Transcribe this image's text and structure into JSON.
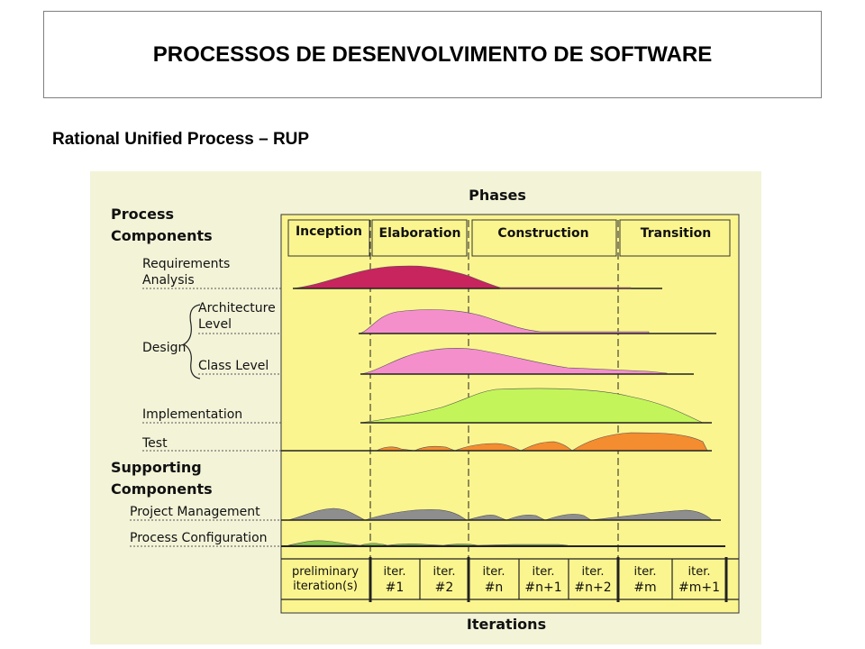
{
  "header": {
    "title": "PROCESSOS DE DESENVOLVIMENTO DE SOFTWARE"
  },
  "subtitle": "Rational Unified Process – RUP",
  "diagram": {
    "top_label": "Phases",
    "bottom_label": "Iterations",
    "process_components_label": [
      "Process",
      "Components"
    ],
    "supporting_components_label": [
      "Supporting",
      "Components"
    ],
    "phases": [
      "Inception",
      "Elaboration",
      "Construction",
      "Transition"
    ],
    "disciplines": {
      "requirements": [
        "Requirements",
        "Analysis"
      ],
      "design": "Design",
      "architecture": [
        "Architecture",
        "Level"
      ],
      "class_level": "Class Level",
      "implementation": "Implementation",
      "test": "Test",
      "project_management": "Project Management",
      "process_configuration": "Process Configuration"
    },
    "iterations": [
      [
        "preliminary",
        "iteration(s)"
      ],
      [
        "iter.",
        "#1"
      ],
      [
        "iter.",
        "#2"
      ],
      [
        "iter.",
        "#n"
      ],
      [
        "iter.",
        "#n+1"
      ],
      [
        "iter.",
        "#n+2"
      ],
      [
        "iter.",
        "#m"
      ],
      [
        "iter.",
        "#m+1"
      ]
    ],
    "colors": {
      "chart_background": "#fbf58f",
      "requirements": "#c8245e",
      "design": "#f48fcc",
      "implementation": "#c3f55a",
      "test": "#f48c30",
      "project_management": "#8e8e8e",
      "process_configuration": "#86c64a"
    }
  }
}
